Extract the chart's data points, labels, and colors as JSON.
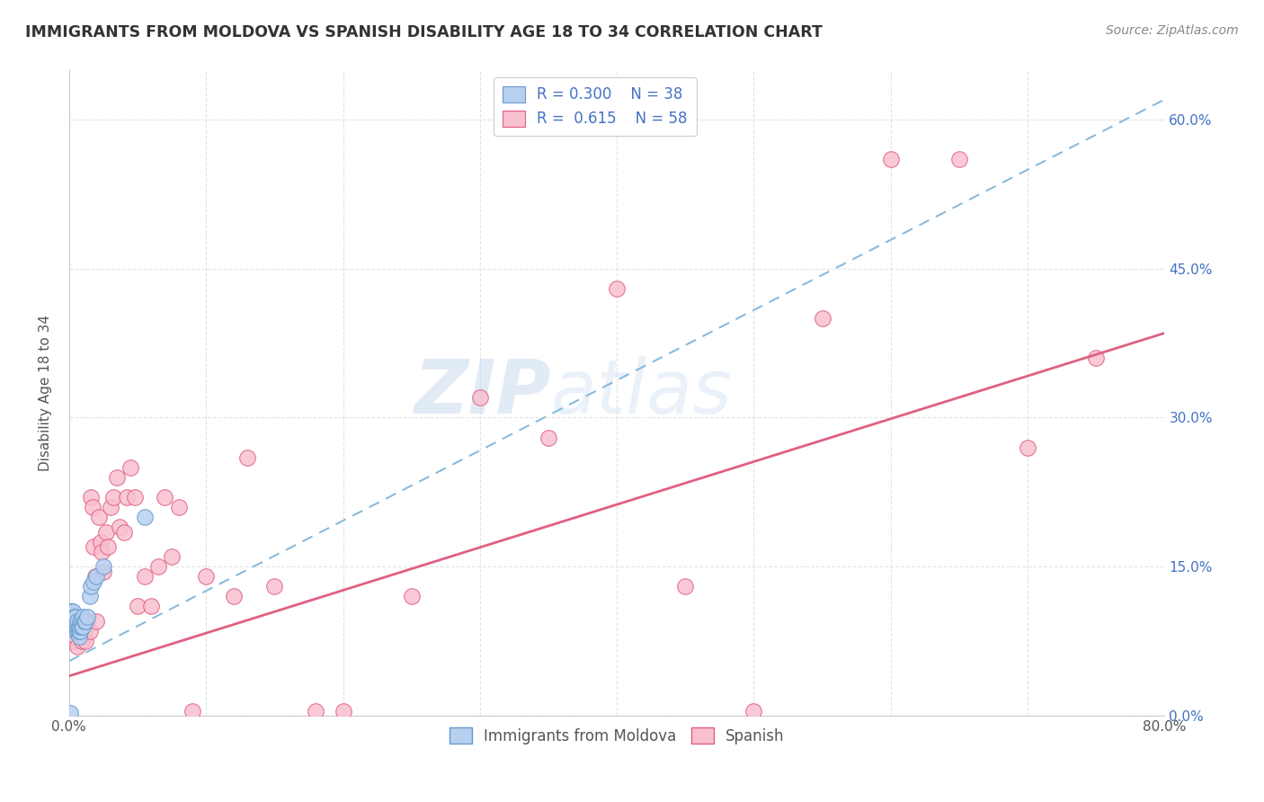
{
  "title": "IMMIGRANTS FROM MOLDOVA VS SPANISH DISABILITY AGE 18 TO 34 CORRELATION CHART",
  "source": "Source: ZipAtlas.com",
  "ylabel": "Disability Age 18 to 34",
  "xlim": [
    0.0,
    0.8
  ],
  "ylim": [
    0.0,
    0.65
  ],
  "xticks": [
    0.0,
    0.1,
    0.2,
    0.3,
    0.4,
    0.5,
    0.6,
    0.7,
    0.8
  ],
  "xtick_labels": [
    "0.0%",
    "",
    "",
    "",
    "",
    "",
    "",
    "",
    "80.0%"
  ],
  "yticks": [
    0.0,
    0.15,
    0.3,
    0.45,
    0.6
  ],
  "ytick_labels_right": [
    "0.0%",
    "15.0%",
    "30.0%",
    "45.0%",
    "60.0%"
  ],
  "series1_name": "Immigrants from Moldova",
  "series1_R": 0.3,
  "series1_N": 38,
  "series1_color": "#b8d0f0",
  "series1_edge": "#6699cc",
  "series2_name": "Spanish",
  "series2_R": 0.615,
  "series2_N": 58,
  "series2_color": "#f8c0d0",
  "series2_edge": "#e06080",
  "watermark": "ZIPatlas",
  "background_color": "#ffffff",
  "grid_color": "#dddddd",
  "moldova_x": [
    0.001,
    0.001,
    0.002,
    0.002,
    0.003,
    0.003,
    0.003,
    0.003,
    0.004,
    0.004,
    0.004,
    0.005,
    0.005,
    0.005,
    0.005,
    0.006,
    0.006,
    0.006,
    0.007,
    0.007,
    0.007,
    0.008,
    0.008,
    0.008,
    0.009,
    0.009,
    0.01,
    0.01,
    0.011,
    0.012,
    0.013,
    0.015,
    0.016,
    0.018,
    0.02,
    0.025,
    0.055,
    0.001
  ],
  "moldova_y": [
    0.095,
    0.105,
    0.095,
    0.105,
    0.09,
    0.095,
    0.1,
    0.105,
    0.09,
    0.095,
    0.1,
    0.085,
    0.09,
    0.095,
    0.1,
    0.085,
    0.09,
    0.095,
    0.08,
    0.085,
    0.09,
    0.085,
    0.09,
    0.095,
    0.09,
    0.095,
    0.09,
    0.1,
    0.095,
    0.095,
    0.1,
    0.12,
    0.13,
    0.135,
    0.14,
    0.15,
    0.2,
    0.003
  ],
  "spanish_x": [
    0.001,
    0.002,
    0.003,
    0.004,
    0.005,
    0.006,
    0.007,
    0.008,
    0.009,
    0.01,
    0.011,
    0.012,
    0.013,
    0.015,
    0.016,
    0.017,
    0.018,
    0.019,
    0.02,
    0.022,
    0.023,
    0.024,
    0.025,
    0.027,
    0.028,
    0.03,
    0.032,
    0.035,
    0.037,
    0.04,
    0.042,
    0.045,
    0.048,
    0.05,
    0.055,
    0.06,
    0.065,
    0.07,
    0.075,
    0.08,
    0.09,
    0.1,
    0.12,
    0.13,
    0.15,
    0.18,
    0.2,
    0.25,
    0.3,
    0.35,
    0.4,
    0.45,
    0.5,
    0.55,
    0.6,
    0.65,
    0.7,
    0.75
  ],
  "spanish_y": [
    0.09,
    0.085,
    0.08,
    0.075,
    0.08,
    0.07,
    0.09,
    0.085,
    0.075,
    0.08,
    0.085,
    0.075,
    0.095,
    0.085,
    0.22,
    0.21,
    0.17,
    0.14,
    0.095,
    0.2,
    0.175,
    0.165,
    0.145,
    0.185,
    0.17,
    0.21,
    0.22,
    0.24,
    0.19,
    0.185,
    0.22,
    0.25,
    0.22,
    0.11,
    0.14,
    0.11,
    0.15,
    0.22,
    0.16,
    0.21,
    0.005,
    0.14,
    0.12,
    0.26,
    0.13,
    0.005,
    0.005,
    0.12,
    0.32,
    0.28,
    0.43,
    0.13,
    0.005,
    0.4,
    0.56,
    0.56,
    0.27,
    0.36
  ],
  "trend_blue_x0": 0.0,
  "trend_blue_y0": 0.055,
  "trend_blue_x1": 0.8,
  "trend_blue_y1": 0.62,
  "trend_pink_x0": 0.0,
  "trend_pink_y0": 0.04,
  "trend_pink_x1": 0.8,
  "trend_pink_y1": 0.385
}
